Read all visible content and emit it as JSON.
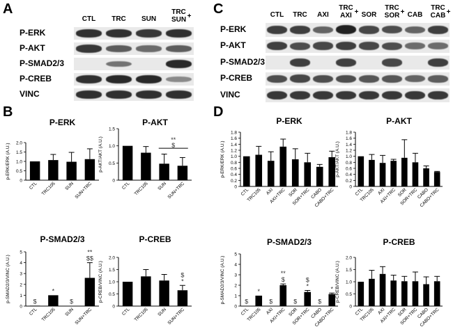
{
  "panels": {
    "a": "A",
    "b": "B",
    "c": "C",
    "d": "D"
  },
  "blotA": {
    "lanes": [
      "CTL",
      "TRC",
      "SUN",
      "TRC\nSUN"
    ],
    "plus": "+",
    "rows": [
      "P-ERK",
      "P-AKT",
      "P-SMAD2/3",
      "P-CREB",
      "VINC"
    ],
    "intensity": [
      [
        0.9,
        0.9,
        0.85,
        0.9
      ],
      [
        0.85,
        0.6,
        0.5,
        0.6
      ],
      [
        0.0,
        0.45,
        0.0,
        0.95
      ],
      [
        0.9,
        0.95,
        0.95,
        0.3
      ],
      [
        0.9,
        0.9,
        0.9,
        0.9
      ]
    ]
  },
  "blotC": {
    "lanes": [
      "CTL",
      "TRC",
      "AXI",
      "TRC\nAXI",
      "SOR",
      "TRC\nSOR",
      "CAB",
      "TRC\nCAB"
    ],
    "plus": "+",
    "rows": [
      "P-ERK",
      "P-AKT",
      "P-SMAD2/3",
      "P-CREB",
      "VINC"
    ],
    "intensity": [
      [
        0.8,
        0.8,
        0.55,
        1.0,
        0.75,
        0.7,
        0.55,
        0.8
      ],
      [
        0.8,
        0.7,
        0.75,
        0.8,
        0.75,
        0.7,
        0.5,
        0.5
      ],
      [
        0.0,
        0.8,
        0.0,
        0.8,
        0.0,
        0.75,
        0.0,
        0.8
      ],
      [
        0.7,
        0.75,
        0.7,
        0.7,
        0.65,
        0.65,
        0.55,
        0.6
      ],
      [
        0.85,
        0.85,
        0.85,
        0.85,
        0.85,
        0.85,
        0.85,
        0.85
      ]
    ]
  },
  "chart_data": [
    {
      "type": "bar",
      "title": "P-ERK",
      "ylabel": "p-ERK/ERK (A.U.)",
      "ylim": [
        0,
        2
      ],
      "yticks": [
        "0",
        "0.5",
        "1.0",
        "1.5",
        "2.0"
      ],
      "categories": [
        "CTL",
        "TRC105",
        "SUN",
        "SUN+TRC"
      ],
      "values": [
        1.0,
        1.07,
        0.98,
        1.12
      ],
      "errors": [
        0,
        0.3,
        0.5,
        0.55
      ],
      "annotations": [
        "",
        "",
        "",
        ""
      ]
    },
    {
      "type": "bar",
      "title": "P-AKT",
      "ylabel": "p-AKT/AKT (A.U.)",
      "ylim": [
        0,
        1.5
      ],
      "yticks": [
        "0",
        "0.5",
        "1.0",
        "1.5"
      ],
      "categories": [
        "CTL",
        "TRC105",
        "SUN",
        "SUN+TRC"
      ],
      "values": [
        1.0,
        0.8,
        0.48,
        0.42
      ],
      "errors": [
        0,
        0.18,
        0.28,
        0.24
      ],
      "annotations": [
        "",
        "",
        "",
        ""
      ],
      "bracket": {
        "from": 2,
        "to": 3,
        "text": "**",
        "sub": "$"
      }
    },
    {
      "type": "bar",
      "title": "P-SMAD2/3",
      "ylabel": "p-SMAD2/3/VINC (A.U.)",
      "ylim": [
        0,
        5
      ],
      "yticks": [
        "0",
        "1",
        "2",
        "3",
        "4",
        "5"
      ],
      "categories": [
        "CTL",
        "TRC105",
        "SUN",
        "SUN+TRC"
      ],
      "values": [
        0.04,
        1.0,
        0.03,
        2.6
      ],
      "errors": [
        0,
        0,
        0,
        1.4
      ],
      "annotations": [
        "$",
        "*",
        "$",
        "**\n$$"
      ]
    },
    {
      "type": "bar",
      "title": "P-CREB",
      "ylabel": "p-CREB/VINC (A.U.)",
      "ylim": [
        0,
        2
      ],
      "yticks": [
        "0",
        "0.5",
        "1.0",
        "1.5",
        "2.0"
      ],
      "categories": [
        "CTL",
        "TRC105",
        "SUN",
        "SUN+TRC"
      ],
      "values": [
        1.0,
        1.22,
        1.05,
        0.65
      ],
      "errors": [
        0,
        0.28,
        0.25,
        0.2
      ],
      "annotations": [
        "",
        "",
        "",
        "$\n*"
      ]
    },
    {
      "type": "bar",
      "title": "P-ERK",
      "ylabel": "p-ERK/ERK (A.U.)",
      "ylim": [
        0,
        1.8
      ],
      "yticks": [
        "0",
        "0.2",
        "0.4",
        "0.6",
        "0.8",
        "1.0",
        "1.2",
        "1.4",
        "1.6",
        "1.8"
      ],
      "categories": [
        "CTL",
        "TRC105",
        "AXI",
        "AXI+TRC",
        "SOR",
        "SOR+TRC",
        "CABO",
        "CABO+TRC"
      ],
      "values": [
        1.0,
        1.05,
        0.85,
        1.32,
        0.9,
        0.8,
        0.65,
        0.97
      ],
      "errors": [
        0,
        0.28,
        0.3,
        0.25,
        0.35,
        0.3,
        0.08,
        0.2
      ],
      "annotations": [
        "",
        "",
        "",
        "",
        "",
        "",
        "",
        ""
      ]
    },
    {
      "type": "bar",
      "title": "P-AKT",
      "ylabel": "p-AKT/AKT (A.U.)",
      "ylim": [
        0,
        1.8
      ],
      "yticks": [
        "0",
        "0.2",
        "0.4",
        "0.6",
        "0.8",
        "1.0",
        "1.2",
        "1.4",
        "1.6",
        "1.8"
      ],
      "categories": [
        "CTL",
        "TRC105",
        "AXI",
        "AXI+TRC",
        "SOR",
        "SOR+TRC",
        "CABO",
        "CABO+TRC"
      ],
      "values": [
        1.0,
        0.88,
        0.78,
        0.85,
        0.95,
        0.8,
        0.6,
        0.48
      ],
      "errors": [
        0,
        0.18,
        0.25,
        0.05,
        0.6,
        0.3,
        0.08,
        0.02
      ],
      "annotations": [
        "",
        "",
        "",
        "",
        "",
        "",
        "",
        ""
      ]
    },
    {
      "type": "bar",
      "title": "P-SMAD2/3",
      "ylabel": "p-SMAD2/3/VINC (A.U.)",
      "ylim": [
        0,
        5
      ],
      "yticks": [
        "0",
        "1",
        "2",
        "3",
        "4",
        "5"
      ],
      "categories": [
        "CTL",
        "TRC105",
        "AXI",
        "AXI+TRC",
        "SOR",
        "SOR+TRC",
        "CABO",
        "CABO+TRC"
      ],
      "values": [
        0.03,
        1.0,
        0.03,
        2.0,
        0.03,
        1.35,
        0.03,
        1.15
      ],
      "errors": [
        0,
        0,
        0,
        0.12,
        0,
        0.15,
        0,
        0.1
      ],
      "annotations": [
        "$",
        "*",
        "$",
        "**\n$",
        "$",
        "$\n*",
        "$",
        "*"
      ]
    },
    {
      "type": "bar",
      "title": "P-CREB",
      "ylabel": "p-CREB/VINC (A.U.)",
      "ylim": [
        0,
        2
      ],
      "yticks": [
        "0",
        "0.5",
        "1.0",
        "1.5",
        "2.0"
      ],
      "categories": [
        "CTL",
        "TRC105",
        "AXI",
        "AXI+TRC",
        "SOR",
        "SOR+TRC",
        "CABO",
        "CABO+TRC"
      ],
      "values": [
        1.0,
        1.12,
        1.32,
        1.05,
        1.02,
        1.02,
        0.9,
        1.02
      ],
      "errors": [
        0,
        0.35,
        0.3,
        0.22,
        0.2,
        0.38,
        0.3,
        0.2
      ],
      "annotations": [
        "",
        "",
        "",
        "",
        "",
        "",
        "",
        ""
      ]
    }
  ]
}
